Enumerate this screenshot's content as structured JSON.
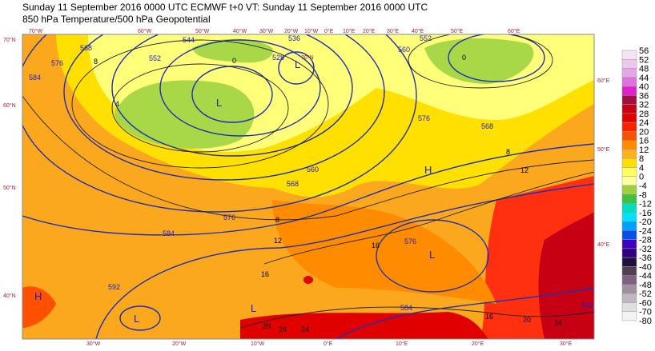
{
  "header": {
    "line1": "Sunday 11 September 2016 0000 UTC  ECMWF  t+0  VT: Sunday 11 September 2016 0000 UTC",
    "line2": "850 hPa Temperature/500 hPa Geopotential"
  },
  "legend": {
    "labels": [
      "56",
      "52",
      "48",
      "44",
      "40",
      "36",
      "32",
      "28",
      "24",
      "20",
      "16",
      "12",
      "8",
      "4",
      "0",
      "-4",
      "-8",
      "-12",
      "-16",
      "-20",
      "-24",
      "-28",
      "-32",
      "-36",
      "-40",
      "-44",
      "-48",
      "-52",
      "-60",
      "-70",
      "-80"
    ],
    "colors": [
      "#f4e4f4",
      "#ecc8ec",
      "#e4a8e4",
      "#e070e0",
      "#e020d0",
      "#a0103c",
      "#c80014",
      "#e00000",
      "#ff2000",
      "#ff5000",
      "#ff8c00",
      "#ffb020",
      "#ffe000",
      "#ffff60",
      "#ffffa0",
      "#a0d040",
      "#40c040",
      "#00e0c0",
      "#00e0ff",
      "#00a0ff",
      "#0050f0",
      "#4000c0",
      "#300080",
      "#201040",
      "#504050",
      "#806080",
      "#a090a0",
      "#c0b8c0",
      "#e0e0e0",
      "#f4f4f4"
    ]
  },
  "grid_labels": {
    "top": [
      "70°W",
      "60°W",
      "50°W",
      "40°W",
      "30°W",
      "20°W",
      "10°W",
      "0°E",
      "10°E",
      "20°E",
      "30°E",
      "40°E",
      "50°E",
      "60°E"
    ],
    "bottom": [
      "30°W",
      "20°W",
      "10°W",
      "0°E",
      "10°E",
      "20°E",
      "30°E"
    ],
    "left": [
      "70°N",
      "60°N",
      "50°N",
      "40°N"
    ],
    "right": [
      "60°E",
      "50°E",
      "40°E"
    ],
    "inner": [
      "70°N"
    ]
  },
  "contour_labels": {
    "geopotential": [
      "536",
      "528",
      "544",
      "552",
      "584",
      "576",
      "568",
      "552",
      "560",
      "576",
      "568",
      "560",
      "568",
      "576",
      "584",
      "592",
      "576",
      "584",
      "592"
    ],
    "temperature": [
      "0",
      "4",
      "8",
      "0",
      "8",
      "12",
      "16",
      "16",
      "20",
      "24",
      "24",
      "16",
      "20",
      "24",
      "12",
      "8"
    ]
  },
  "pressure_centers": [
    "L",
    "L",
    "H",
    "L",
    "H",
    "L",
    "L"
  ]
}
